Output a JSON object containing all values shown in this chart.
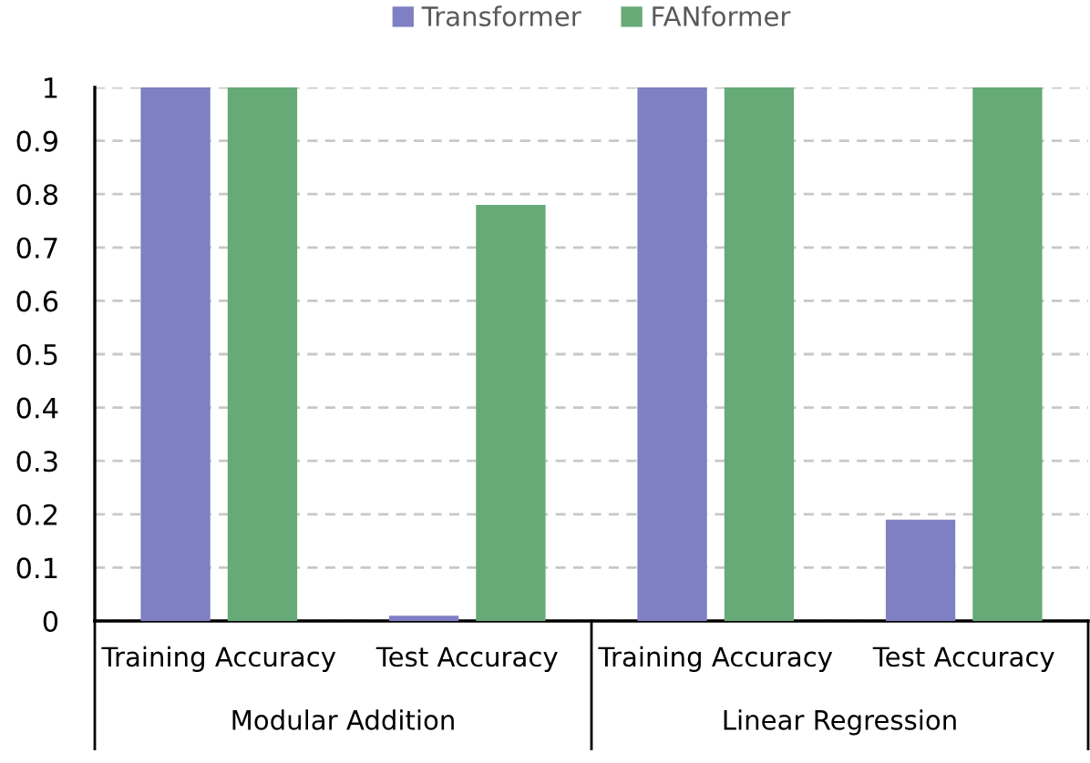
{
  "chart_data": {
    "type": "bar",
    "categories": [
      "Training Accuracy",
      "Test Accuracy",
      "Training Accuracy",
      "Test Accuracy"
    ],
    "series": [
      {
        "name": "Transformer",
        "color": "#7f7fc4",
        "values": [
          1,
          0.01,
          1,
          0.19
        ]
      },
      {
        "name": "FANformer",
        "color": "#66aa77",
        "values": [
          1,
          0.78,
          1,
          1
        ]
      }
    ],
    "annotations": [
      "Modular Addition",
      "Linear Regression"
    ],
    "ylim": [
      0,
      1
    ],
    "yticks": [
      0,
      0.1,
      0.2,
      0.3,
      0.4,
      0.5,
      0.6,
      0.7,
      0.8,
      0.9,
      1
    ],
    "grid": "y",
    "legend": "top"
  }
}
